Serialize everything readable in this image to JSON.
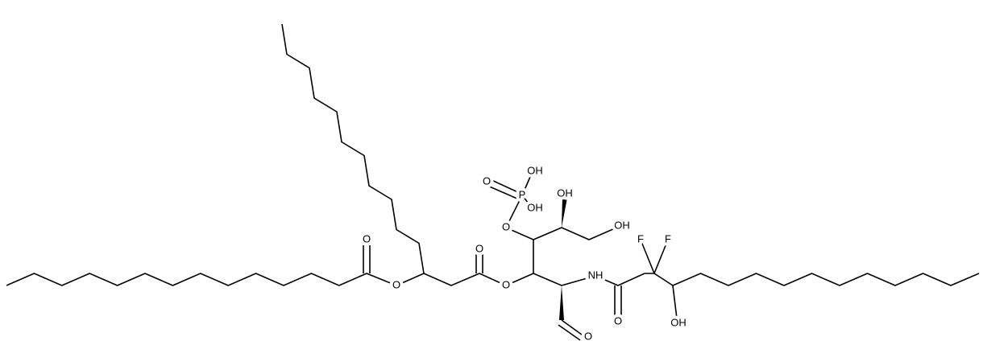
{
  "atom_labels": [
    "O",
    "O",
    "O",
    "O",
    "O",
    "P",
    "O",
    "OH",
    "OH",
    "OH",
    "OH",
    "NH",
    "O",
    "F",
    "F",
    "OH",
    "O"
  ]
}
